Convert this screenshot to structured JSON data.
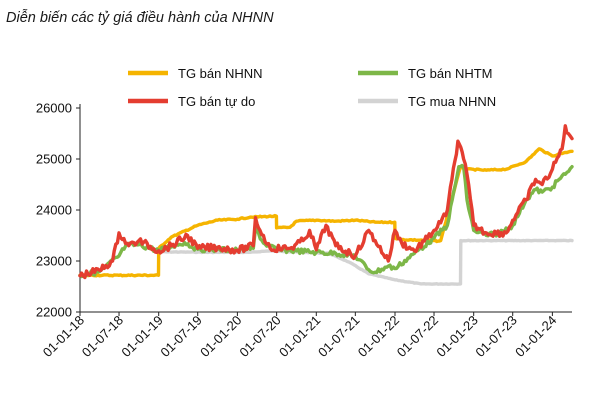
{
  "chart_data": {
    "type": "line",
    "title": "Diễn biến các tỷ giá điều hành của NHNN",
    "xlabel": "",
    "ylabel": "",
    "ylim": [
      22000,
      26000
    ],
    "y_ticks": [
      "22000",
      "23000",
      "24000",
      "25000",
      "26000"
    ],
    "x_ticks": [
      "01-01-18",
      "01-07-18",
      "01-01-19",
      "01-07-19",
      "01-01-20",
      "01-07-20",
      "01-01-21",
      "01-07-21",
      "01-01-22",
      "01-07-22",
      "01-01-23",
      "01-07-23",
      "01-01-24"
    ],
    "x_range": [
      "2018-01-01",
      "2024-04-01"
    ],
    "grid": false,
    "legend_position": "top",
    "series": [
      {
        "name": "TG bán NHNN",
        "color": "#F5B400",
        "points": [
          [
            "2018-01-01",
            22720
          ],
          [
            "2018-07-01",
            22720
          ],
          [
            "2018-12-31",
            22720
          ],
          [
            "2019-01-01",
            23250
          ],
          [
            "2019-03-01",
            23470
          ],
          [
            "2019-07-01",
            23700
          ],
          [
            "2019-10-01",
            23800
          ],
          [
            "2020-01-01",
            23820
          ],
          [
            "2020-03-01",
            23860
          ],
          [
            "2020-06-30",
            23880
          ],
          [
            "2020-07-01",
            23650
          ],
          [
            "2020-09-01",
            23660
          ],
          [
            "2020-10-01",
            23780
          ],
          [
            "2021-01-01",
            23800
          ],
          [
            "2021-04-01",
            23780
          ],
          [
            "2021-07-01",
            23800
          ],
          [
            "2021-10-01",
            23760
          ],
          [
            "2021-12-31",
            23760
          ],
          [
            "2022-01-01",
            23450
          ],
          [
            "2022-02-01",
            23420
          ],
          [
            "2022-07-01",
            23400
          ],
          [
            "2022-07-20",
            23390
          ],
          [
            "2022-08-01",
            23400
          ],
          [
            "2022-11-01",
            24850
          ],
          [
            "2022-12-01",
            24800
          ],
          [
            "2023-03-01",
            24780
          ],
          [
            "2023-06-01",
            24800
          ],
          [
            "2023-09-01",
            24950
          ],
          [
            "2023-11-01",
            25200
          ],
          [
            "2024-01-01",
            25060
          ],
          [
            "2024-03-01",
            25130
          ],
          [
            "2024-04-01",
            25150
          ]
        ]
      },
      {
        "name": "TG bán NHTM",
        "color": "#7DB748",
        "points": [
          [
            "2018-01-01",
            22720
          ],
          [
            "2018-04-01",
            22790
          ],
          [
            "2018-07-01",
            23100
          ],
          [
            "2018-08-01",
            23300
          ],
          [
            "2018-10-01",
            23320
          ],
          [
            "2019-01-01",
            23200
          ],
          [
            "2019-03-01",
            23290
          ],
          [
            "2019-05-01",
            23360
          ],
          [
            "2019-07-01",
            23230
          ],
          [
            "2019-10-01",
            23230
          ],
          [
            "2020-01-01",
            23210
          ],
          [
            "2020-03-15",
            23250
          ],
          [
            "2020-03-25",
            23650
          ],
          [
            "2020-05-01",
            23350
          ],
          [
            "2020-07-01",
            23220
          ],
          [
            "2020-10-01",
            23200
          ],
          [
            "2021-01-01",
            23170
          ],
          [
            "2021-04-01",
            23150
          ],
          [
            "2021-07-01",
            23100
          ],
          [
            "2021-09-01",
            22830
          ],
          [
            "2021-10-01",
            22780
          ],
          [
            "2021-12-01",
            22900
          ],
          [
            "2022-01-01",
            22850
          ],
          [
            "2022-04-01",
            23150
          ],
          [
            "2022-07-01",
            23450
          ],
          [
            "2022-09-01",
            23700
          ],
          [
            "2022-10-24",
            24850
          ],
          [
            "2022-11-15",
            24850
          ],
          [
            "2022-12-01",
            24200
          ],
          [
            "2023-01-01",
            23600
          ],
          [
            "2023-03-01",
            23500
          ],
          [
            "2023-05-01",
            23550
          ],
          [
            "2023-07-01",
            23700
          ],
          [
            "2023-09-01",
            24200
          ],
          [
            "2023-10-15",
            24400
          ],
          [
            "2023-11-15",
            24350
          ],
          [
            "2024-01-01",
            24450
          ],
          [
            "2024-02-01",
            24600
          ],
          [
            "2024-03-01",
            24700
          ],
          [
            "2024-04-01",
            24850
          ]
        ]
      },
      {
        "name": "TG bán tự do",
        "color": "#E43D30",
        "points": [
          [
            "2018-01-01",
            22710
          ],
          [
            "2018-04-01",
            22820
          ],
          [
            "2018-06-01",
            23000
          ],
          [
            "2018-07-01",
            23550
          ],
          [
            "2018-08-15",
            23300
          ],
          [
            "2018-10-01",
            23400
          ],
          [
            "2019-01-01",
            23200
          ],
          [
            "2019-03-01",
            23300
          ],
          [
            "2019-05-15",
            23500
          ],
          [
            "2019-07-01",
            23250
          ],
          [
            "2019-10-01",
            23270
          ],
          [
            "2020-01-01",
            23210
          ],
          [
            "2020-03-15",
            23300
          ],
          [
            "2020-03-25",
            23850
          ],
          [
            "2020-04-15",
            23600
          ],
          [
            "2020-06-01",
            23250
          ],
          [
            "2020-09-01",
            23250
          ],
          [
            "2020-11-01",
            23400
          ],
          [
            "2020-12-01",
            23600
          ],
          [
            "2021-01-01",
            23220
          ],
          [
            "2021-02-15",
            23700
          ],
          [
            "2021-04-01",
            23300
          ],
          [
            "2021-07-01",
            23100
          ],
          [
            "2021-09-01",
            23600
          ],
          [
            "2021-10-01",
            23400
          ],
          [
            "2021-12-01",
            23000
          ],
          [
            "2022-01-01",
            23600
          ],
          [
            "2022-02-01",
            23350
          ],
          [
            "2022-04-01",
            23200
          ],
          [
            "2022-06-01",
            23450
          ],
          [
            "2022-07-01",
            23600
          ],
          [
            "2022-08-01",
            23750
          ],
          [
            "2022-09-01",
            24000
          ],
          [
            "2022-10-20",
            25350
          ],
          [
            "2022-11-15",
            25000
          ],
          [
            "2022-12-01",
            24700
          ],
          [
            "2023-01-01",
            23700
          ],
          [
            "2023-03-01",
            23550
          ],
          [
            "2023-06-01",
            23550
          ],
          [
            "2023-07-01",
            23800
          ],
          [
            "2023-09-01",
            24200
          ],
          [
            "2023-10-15",
            24600
          ],
          [
            "2023-11-15",
            24500
          ],
          [
            "2024-01-01",
            24800
          ],
          [
            "2024-02-15",
            25200
          ],
          [
            "2024-03-01",
            25650
          ],
          [
            "2024-03-15",
            25500
          ],
          [
            "2024-04-01",
            25400
          ]
        ]
      },
      {
        "name": "TG mua NHNN",
        "color": "#D3D3D3",
        "points": [
          [
            "2018-12-31",
            23170
          ],
          [
            "2019-01-01",
            23180
          ],
          [
            "2019-10-01",
            23170
          ],
          [
            "2020-03-01",
            23170
          ],
          [
            "2020-06-01",
            23200
          ],
          [
            "2021-01-01",
            23160
          ],
          [
            "2021-03-01",
            23150
          ],
          [
            "2021-06-01",
            22980
          ],
          [
            "2021-09-01",
            22750
          ],
          [
            "2022-01-01",
            22630
          ],
          [
            "2022-05-01",
            22550
          ],
          [
            "2022-11-01",
            22550
          ],
          [
            "2022-11-02",
            23400
          ],
          [
            "2023-12-31",
            23400
          ],
          [
            "2024-04-01",
            23400
          ]
        ]
      }
    ]
  }
}
